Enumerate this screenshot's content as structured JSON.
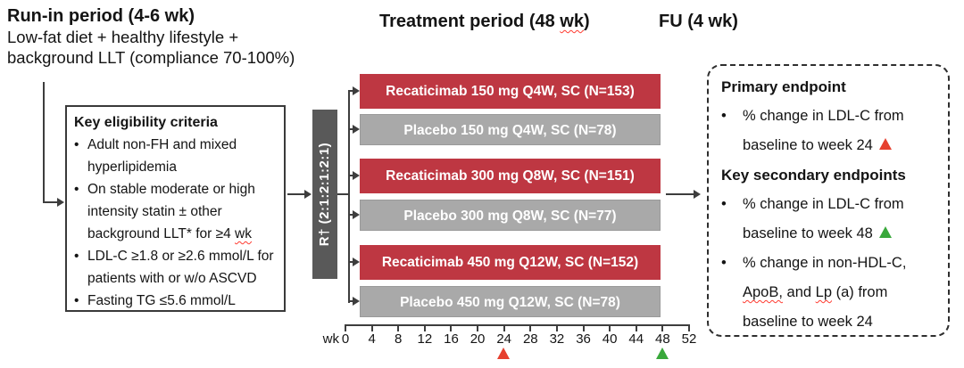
{
  "glyphs": {
    "bullet": "•"
  },
  "colors": {
    "treatment_bar_red": "#BE3742",
    "placebo_bar_gray": "#A9A9A9",
    "randomization_bar_gray": "#595959",
    "marker_red": "#E6402F",
    "marker_green": "#39A83B"
  },
  "phases": {
    "run_in": {
      "title": "Run-in period (4-6 wk)",
      "subtitle_line1": "Low-fat diet + healthy lifestyle +",
      "subtitle_line2": "background LLT (compliance 70-100%)"
    },
    "treatment": {
      "title_pre": "Treatment period (48 ",
      "title_squiggle_word": "wk",
      "title_post": ")"
    },
    "follow_up": {
      "title": "FU (4 wk)"
    }
  },
  "eligibility": {
    "title": "Key eligibility criteria",
    "bullet1": "Adult non-FH and mixed hyperlipidemia",
    "bullet2_pre": "On stable moderate or high intensity statin ± other background LLT* for ≥4 ",
    "bullet2_squiggle_word": "wk",
    "bullet3": "LDL-C ≥1.8 or ≥2.6 mmol/L for patients with or w/o ASCVD",
    "bullet4": "Fasting TG ≤5.6 mmol/L"
  },
  "randomization": {
    "label": "R† (2:1:2:1:2:1)"
  },
  "arms": [
    {
      "label": "Recaticimab 150 mg Q4W, SC (N=153)",
      "type": "treatment"
    },
    {
      "label": "Placebo 150 mg Q4W, SC (N=78)",
      "type": "placebo"
    },
    {
      "label": "Recaticimab 300 mg Q8W, SC (N=151)",
      "type": "treatment"
    },
    {
      "label": "Placebo 300 mg Q8W, SC (N=77)",
      "type": "placebo"
    },
    {
      "label": "Recaticimab 450 mg Q12W, SC (N=152)",
      "type": "treatment"
    },
    {
      "label": "Placebo 450 mg Q12W, SC (N=78)",
      "type": "placebo"
    }
  ],
  "axis": {
    "unit_label": "wk",
    "tick_labels": [
      "0",
      "4",
      "8",
      "12",
      "16",
      "20",
      "24",
      "28",
      "32",
      "36",
      "40",
      "44",
      "48",
      "52"
    ],
    "primary_marker_week": "24",
    "secondary_marker_week": "48"
  },
  "endpoints": {
    "primary_title": "Primary endpoint",
    "primary_bullet": "% change in LDL-C from baseline to week 24",
    "secondary_title": "Key secondary endpoints",
    "secondary_bullet1": "% change in LDL-C from baseline to week 48",
    "secondary_bullet2_pre": "% change in non-HDL-C, ",
    "secondary_bullet2_squiggle1": "ApoB,",
    "secondary_bullet2_mid": " and ",
    "secondary_bullet2_squiggle2": "Lp",
    "secondary_bullet2_post": " (a) from baseline to week 24"
  }
}
